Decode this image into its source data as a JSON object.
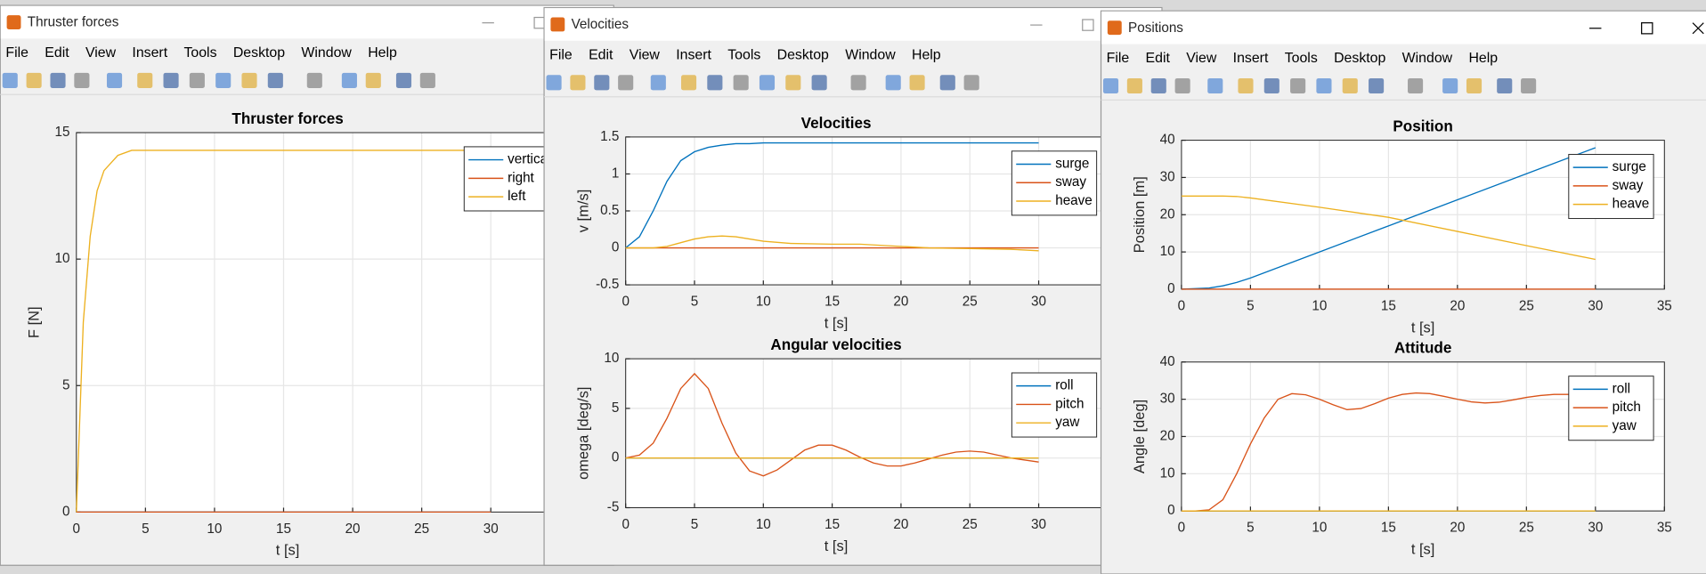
{
  "windows": [
    {
      "title": "Thruster forces",
      "menu": [
        "File",
        "Edit",
        "View",
        "Insert",
        "Tools",
        "Desktop",
        "Window",
        "Help"
      ],
      "charts": [
        {
          "type": "line",
          "title": "Thruster forces",
          "xlabel": "t [s]",
          "ylabel": "F [N]",
          "x": [
            0,
            0.5,
            1,
            1.5,
            2,
            3,
            4,
            5,
            10,
            15,
            20,
            25,
            30
          ],
          "series": [
            {
              "name": "vertical",
              "color": "#0072BD",
              "values": [
                0,
                0,
                0,
                0,
                0,
                0,
                0,
                0,
                0,
                0,
                0,
                0,
                0
              ]
            },
            {
              "name": "right",
              "color": "#D95319",
              "values": [
                0,
                0,
                0,
                0,
                0,
                0,
                0,
                0,
                0,
                0,
                0,
                0,
                0
              ]
            },
            {
              "name": "left",
              "color": "#EDB120",
              "values": [
                0,
                7.5,
                10.9,
                12.7,
                13.5,
                14.1,
                14.3,
                14.3,
                14.3,
                14.3,
                14.3,
                14.3,
                14.3
              ]
            }
          ],
          "xlim": [
            0,
            35
          ],
          "ylim": [
            0,
            15
          ],
          "xticks": [
            0,
            5,
            10,
            15,
            20,
            25,
            30
          ],
          "yticks": [
            0,
            5,
            10,
            15
          ],
          "grid": true,
          "legend": "northeast"
        }
      ]
    },
    {
      "title": "Velocities",
      "menu": [
        "File",
        "Edit",
        "View",
        "Insert",
        "Tools",
        "Desktop",
        "Window",
        "Help"
      ],
      "charts": [
        {
          "type": "line",
          "title": "Velocities",
          "xlabel": "t [s]",
          "ylabel": "v [m/s]",
          "x": [
            0,
            1,
            2,
            3,
            4,
            5,
            6,
            7,
            8,
            9,
            10,
            12,
            15,
            17,
            20,
            22,
            25,
            28,
            30
          ],
          "series": [
            {
              "name": "surge",
              "color": "#0072BD",
              "values": [
                0,
                0.15,
                0.5,
                0.9,
                1.18,
                1.3,
                1.36,
                1.39,
                1.41,
                1.41,
                1.42,
                1.42,
                1.42,
                1.42,
                1.42,
                1.42,
                1.42,
                1.42,
                1.42
              ]
            },
            {
              "name": "sway",
              "color": "#D95319",
              "values": [
                0,
                0,
                0,
                0,
                0,
                0,
                0,
                0,
                0,
                0,
                0,
                0,
                0,
                0,
                0,
                0,
                0,
                0,
                0
              ]
            },
            {
              "name": "heave",
              "color": "#EDB120",
              "values": [
                0,
                0,
                0,
                0.02,
                0.07,
                0.12,
                0.15,
                0.16,
                0.15,
                0.12,
                0.09,
                0.06,
                0.05,
                0.05,
                0.02,
                0,
                -0.01,
                -0.02,
                -0.04
              ]
            }
          ],
          "xlim": [
            0,
            35
          ],
          "ylim": [
            -0.5,
            1.5
          ],
          "xticks": [
            0,
            5,
            10,
            15,
            20,
            25,
            30
          ],
          "yticks": [
            -0.5,
            0,
            0.5,
            1,
            1.5
          ],
          "grid": true,
          "legend": "northeast"
        },
        {
          "type": "line",
          "title": "Angular velocities",
          "xlabel": "t [s]",
          "ylabel": "omega [deg/s]",
          "x": [
            0,
            1,
            2,
            3,
            4,
            5,
            6,
            7,
            8,
            9,
            10,
            11,
            12,
            13,
            14,
            15,
            16,
            17,
            18,
            19,
            20,
            21,
            22,
            23,
            24,
            25,
            26,
            27,
            28,
            29,
            30
          ],
          "series": [
            {
              "name": "roll",
              "color": "#0072BD",
              "values": [
                0,
                0,
                0,
                0,
                0,
                0,
                0,
                0,
                0,
                0,
                0,
                0,
                0,
                0,
                0,
                0,
                0,
                0,
                0,
                0,
                0,
                0,
                0,
                0,
                0,
                0,
                0,
                0,
                0,
                0,
                0
              ]
            },
            {
              "name": "pitch",
              "color": "#D95319",
              "values": [
                0,
                0.3,
                1.5,
                4,
                7,
                8.5,
                7,
                3.5,
                0.5,
                -1.3,
                -1.8,
                -1.2,
                -0.2,
                0.8,
                1.3,
                1.3,
                0.8,
                0.1,
                -0.5,
                -0.8,
                -0.8,
                -0.5,
                -0.1,
                0.3,
                0.6,
                0.7,
                0.6,
                0.3,
                0,
                -0.2,
                -0.4
              ]
            },
            {
              "name": "yaw",
              "color": "#EDB120",
              "values": [
                0,
                0,
                0,
                0,
                0,
                0,
                0,
                0,
                0,
                0,
                0,
                0,
                0,
                0,
                0,
                0,
                0,
                0,
                0,
                0,
                0,
                0,
                0,
                0,
                0,
                0,
                0,
                0,
                0,
                0,
                0
              ]
            }
          ],
          "xlim": [
            0,
            35
          ],
          "ylim": [
            -5,
            10
          ],
          "xticks": [
            0,
            5,
            10,
            15,
            20,
            25,
            30
          ],
          "yticks": [
            -5,
            0,
            5,
            10
          ],
          "grid": true,
          "legend": "northeast"
        }
      ]
    },
    {
      "title": "Positions",
      "menu": [
        "File",
        "Edit",
        "View",
        "Insert",
        "Tools",
        "Desktop",
        "Window",
        "Help"
      ],
      "charts": [
        {
          "type": "line",
          "title": "Position",
          "xlabel": "t [s]",
          "ylabel": "Position [m]",
          "x": [
            0,
            2,
            3,
            4,
            5,
            10,
            15,
            20,
            25,
            30
          ],
          "series": [
            {
              "name": "surge",
              "color": "#0072BD",
              "values": [
                0,
                0.3,
                0.9,
                1.8,
                3,
                10,
                17,
                24,
                31,
                38
              ]
            },
            {
              "name": "sway",
              "color": "#D95319",
              "values": [
                0,
                0,
                0,
                0,
                0,
                0,
                0,
                0,
                0,
                0
              ]
            },
            {
              "name": "heave",
              "color": "#EDB120",
              "values": [
                25,
                25,
                25,
                24.9,
                24.5,
                22,
                19.3,
                15.5,
                11.7,
                8
              ]
            }
          ],
          "xlim": [
            0,
            35
          ],
          "ylim": [
            0,
            40
          ],
          "xticks": [
            0,
            5,
            10,
            15,
            20,
            25,
            30,
            35
          ],
          "yticks": [
            0,
            10,
            20,
            30,
            40
          ],
          "grid": true,
          "legend": "northeast"
        },
        {
          "type": "line",
          "title": "Attitude",
          "xlabel": "t [s]",
          "ylabel": "Angle [deg]",
          "x": [
            0,
            1,
            2,
            3,
            4,
            5,
            6,
            7,
            8,
            9,
            10,
            11,
            12,
            13,
            14,
            15,
            16,
            17,
            18,
            19,
            20,
            21,
            22,
            23,
            24,
            25,
            26,
            27,
            28,
            29,
            30
          ],
          "series": [
            {
              "name": "roll",
              "color": "#0072BD",
              "values": [
                0,
                0,
                0,
                0,
                0,
                0,
                0,
                0,
                0,
                0,
                0,
                0,
                0,
                0,
                0,
                0,
                0,
                0,
                0,
                0,
                0,
                0,
                0,
                0,
                0,
                0,
                0,
                0,
                0,
                0,
                0
              ]
            },
            {
              "name": "pitch",
              "color": "#D95319",
              "values": [
                0,
                0,
                0.3,
                3,
                10,
                18,
                25,
                30,
                31.5,
                31.2,
                30,
                28.5,
                27.2,
                27.5,
                28.8,
                30.3,
                31.3,
                31.7,
                31.5,
                30.8,
                30,
                29.3,
                29,
                29.2,
                29.8,
                30.5,
                31,
                31.3,
                31.3,
                31.1,
                31.5
              ]
            },
            {
              "name": "yaw",
              "color": "#EDB120",
              "values": [
                0,
                0,
                0,
                0,
                0,
                0,
                0,
                0,
                0,
                0,
                0,
                0,
                0,
                0,
                0,
                0,
                0,
                0,
                0,
                0,
                0,
                0,
                0,
                0,
                0,
                0,
                0,
                0,
                0,
                0,
                0
              ]
            }
          ],
          "xlim": [
            0,
            35
          ],
          "ylim": [
            0,
            40
          ],
          "xticks": [
            0,
            5,
            10,
            15,
            20,
            25,
            30,
            35
          ],
          "yticks": [
            0,
            10,
            20,
            30,
            40
          ],
          "grid": true,
          "legend": "northeast"
        }
      ]
    }
  ]
}
